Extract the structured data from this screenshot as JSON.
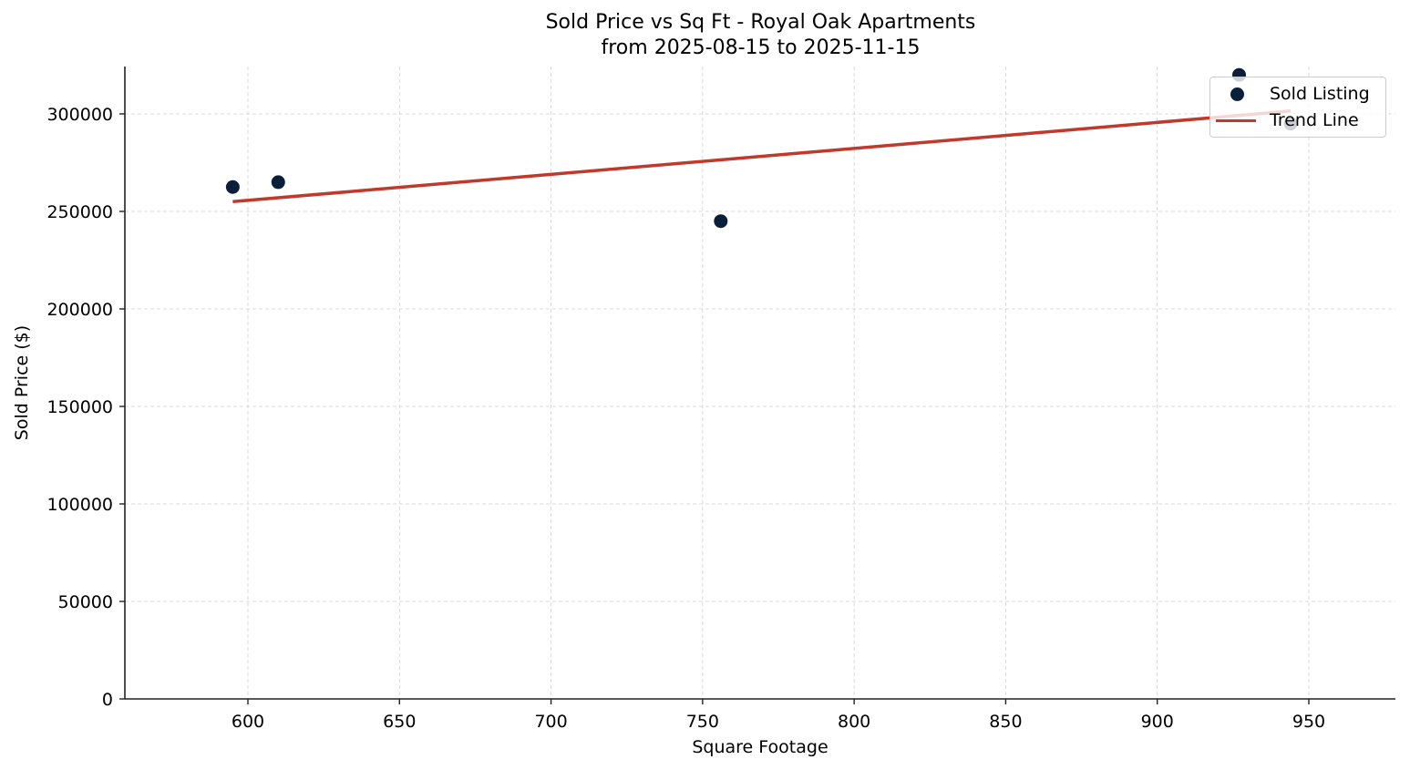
{
  "chart_data": {
    "type": "scatter",
    "title": "Sold Price vs Sq Ft - Royal Oak Apartments",
    "subtitle": "from 2025-08-15 to 2025-11-15",
    "xlabel": "Square Footage",
    "ylabel": "Sold Price ($)",
    "xlim": [
      555,
      980
    ],
    "ylim": [
      0,
      325000
    ],
    "xticks": [
      600,
      650,
      700,
      750,
      800,
      850,
      900,
      950
    ],
    "yticks": [
      0,
      50000,
      100000,
      150000,
      200000,
      250000,
      300000
    ],
    "grid": true,
    "legend_position": "upper right",
    "series": [
      {
        "name": "Sold Listing",
        "kind": "scatter",
        "color": "#0b1f3a",
        "points": [
          {
            "x": 595,
            "y": 262500
          },
          {
            "x": 610,
            "y": 265000
          },
          {
            "x": 756,
            "y": 245000
          },
          {
            "x": 927,
            "y": 320000
          },
          {
            "x": 944,
            "y": 295000
          }
        ]
      },
      {
        "name": "Trend Line",
        "kind": "line",
        "color": "#c0392b",
        "points": [
          {
            "x": 595,
            "y": 255000
          },
          {
            "x": 944,
            "y": 301500
          }
        ]
      }
    ]
  }
}
